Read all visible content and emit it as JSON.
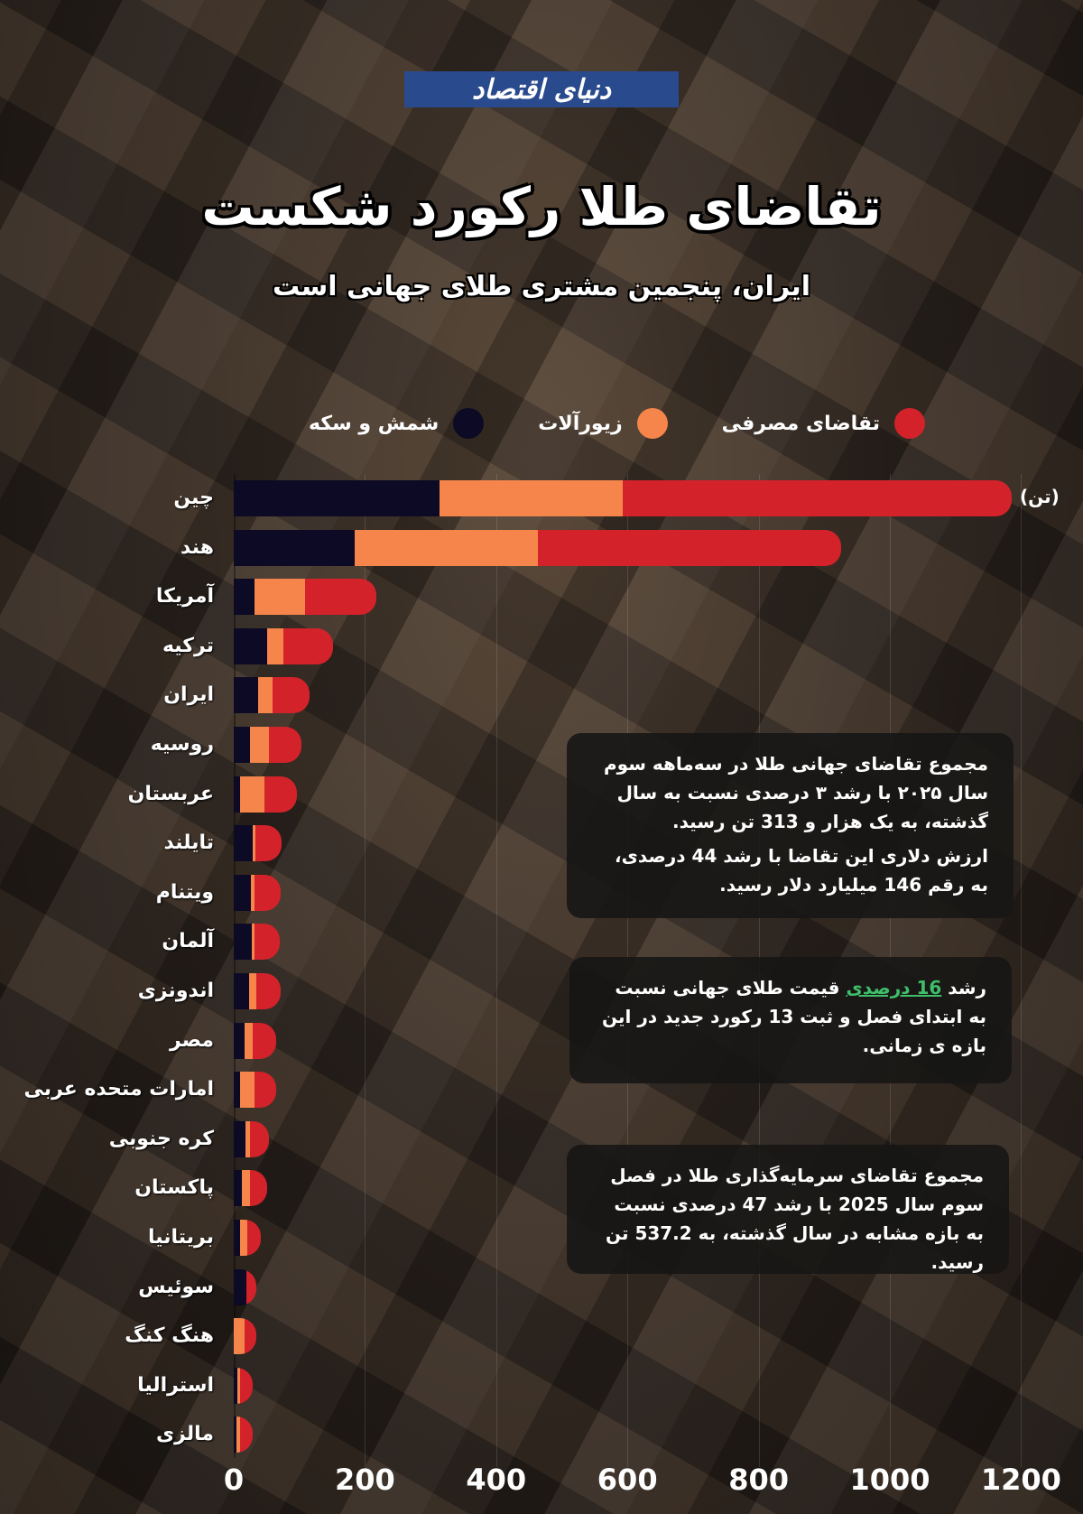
{
  "header": {
    "logo_text": "دنیای اقتصاد",
    "title": "تقاضای طلا رکورد شکست",
    "subtitle": "ایران، پنجمین مشتری طلای جهانی است"
  },
  "colors": {
    "bars_coins": "#0c0a24",
    "jewelry": "#f5854a",
    "consumer_demand": "#d4222b",
    "logo_bg": "#2a4a8e",
    "highlight_green": "#3fbf6a"
  },
  "legend": [
    {
      "label": "تقاضای مصرفی",
      "color": "#d4222b"
    },
    {
      "label": "زیورآلات",
      "color": "#f5854a"
    },
    {
      "label": "شمش و سکه",
      "color": "#0c0a24"
    }
  ],
  "unit_label": "(تن)",
  "x_ticks": [
    "0",
    "200",
    "400",
    "600",
    "800",
    "1000",
    "1200"
  ],
  "chart_data": {
    "type": "bar",
    "orientation": "horizontal",
    "stacked": true,
    "title": "تقاضای طلا رکورد شکست",
    "subtitle": "ایران، پنجمین مشتری طلای جهانی است",
    "xlabel": "(تن)",
    "ylabel": "",
    "xlim": [
      0,
      1200
    ],
    "grid": true,
    "legend_position": "top",
    "categories": [
      "چین",
      "هند",
      "آمریکا",
      "ترکیه",
      "ایران",
      "روسیه",
      "عربستان",
      "تایلند",
      "ویتنام",
      "آلمان",
      "اندونزی",
      "مصر",
      "امارات متحده عربی",
      "کره جنوبی",
      "پاکستان",
      "بریتانیا",
      "سوئیس",
      "هنگ کنگ",
      "استرالیا",
      "مالزی"
    ],
    "series": [
      {
        "name": "شمش و سکه",
        "color": "#0c0a24",
        "values": [
          313,
          184,
          31,
          51,
          37,
          25,
          10,
          29,
          26,
          28,
          24,
          16,
          10,
          18,
          13,
          10,
          19,
          0,
          6,
          4
        ]
      },
      {
        "name": "زیورآلات",
        "color": "#f5854a",
        "values": [
          280,
          279,
          78,
          25,
          22,
          28,
          37,
          4,
          6,
          4,
          10,
          13,
          22,
          7,
          12,
          10,
          0,
          16,
          4,
          6
        ]
      },
      {
        "name": "تقاضای مصرفی",
        "color": "#d4222b",
        "values": [
          593,
          463,
          109,
          75,
          57,
          50,
          49,
          40,
          40,
          38,
          37,
          35,
          32,
          28,
          26,
          21,
          16,
          18,
          19,
          19
        ]
      }
    ]
  },
  "info_boxes": [
    {
      "paragraphs": [
        "مجموع تقاضای جهانی طلا در سه‌ماهه سوم سال ۲۰۲۵ با رشد ۳ درصدی نسبت به سال گذشته، به یک هزار و 313 تن رسید.",
        "ارزش دلاری این تقاضا با رشد 44 درصدی، به رقم 146 میلیارد دلار رسید."
      ]
    },
    {
      "prefix": "رشد ",
      "highlight": "16 درصدی",
      "suffix": " قیمت طلای جهانی نسبت به ابتدای فصل و ثبت 13 رکورد جدید در این بازه ی زمانی."
    },
    {
      "paragraphs": [
        "مجموع تقاضای سرمایه‌گذاری طلا در فصل سوم سال 2025 با رشد 47 درصدی نسبت به بازه مشابه در سال گذشته، به 537.2 تن رسید."
      ]
    }
  ]
}
